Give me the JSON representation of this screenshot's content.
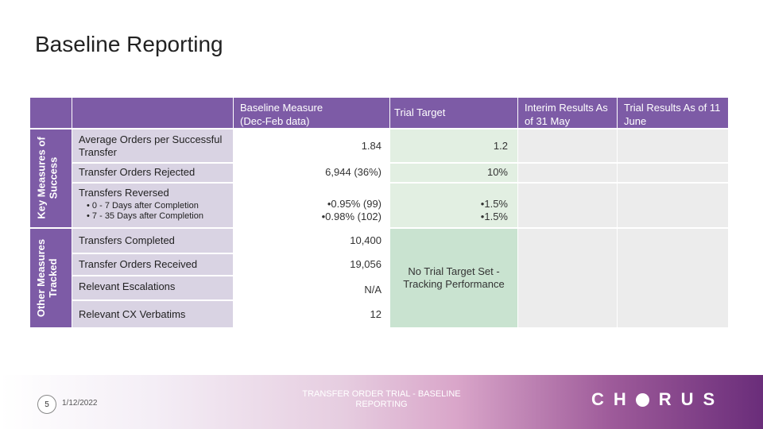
{
  "title": "Baseline Reporting",
  "headers": {
    "baseline_measure": "Baseline Measure (Dec-Feb data)",
    "trial_target": "Trial Target",
    "interim_results": "Interim Results As of 31 May",
    "trial_results": "Trial Results As of 11 June"
  },
  "groups": {
    "key": "Key Measures of Success",
    "other": "Other Measures Tracked"
  },
  "rows": [
    {
      "label": "Average Orders per Successful Transfer",
      "baseline": "1.84",
      "target": "1.2"
    },
    {
      "label": "Transfer Orders Rejected",
      "baseline": "6,944 (36%)",
      "target": "10%"
    },
    {
      "label": "Transfers Reversed",
      "sub": [
        "0 - 7 Days after Completion",
        "7 - 35 Days after Completion"
      ],
      "baseline": [
        "0.95% (99)",
        "0.98% (102)"
      ],
      "target": [
        "1.5%",
        "1.5%"
      ]
    },
    {
      "label": "Transfers Completed",
      "baseline": "10,400"
    },
    {
      "label": "Transfer Orders Received",
      "baseline": "19,056"
    },
    {
      "label": "Relevant Escalations",
      "baseline": "N/A"
    },
    {
      "label": "Relevant CX Verbatims",
      "baseline": "12"
    }
  ],
  "no_target_note": "No Trial Target Set - Tracking Performance",
  "footer": {
    "slide_number": "5",
    "date": "1/12/2022",
    "title": "TRANSFER ORDER TRIAL - BASELINE REPORTING",
    "logo_left": "CH",
    "logo_right": "RUS"
  }
}
